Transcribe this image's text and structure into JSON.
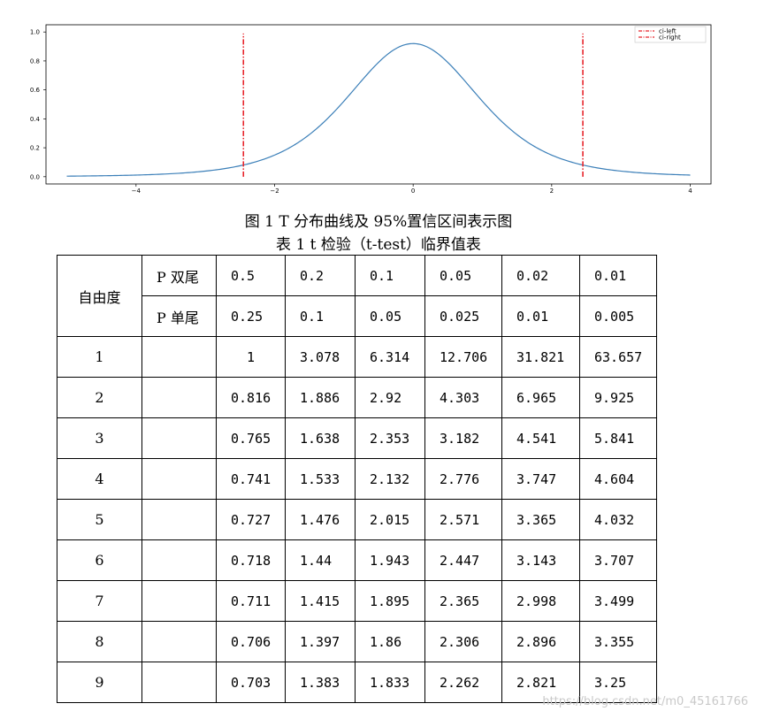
{
  "chart_data": {
    "type": "line",
    "title": "",
    "xlabel": "",
    "ylabel": "",
    "xlim": [
      -5.3,
      4.3
    ],
    "ylim": [
      -0.05,
      1.05
    ],
    "xticks": [
      -4,
      -2,
      0,
      2,
      4
    ],
    "yticks": [
      0.0,
      0.2,
      0.4,
      0.6,
      0.8,
      1.0
    ],
    "xtick_labels": [
      "−4",
      "−2",
      "0",
      "2",
      "4"
    ],
    "ytick_labels": [
      "0.0",
      "0.2",
      "0.4",
      "0.6",
      "0.8",
      "1.0"
    ],
    "curve": {
      "color": "#3b7fb8",
      "x_range": [
        -5,
        4
      ],
      "peak": 0.92,
      "scale": 0.98,
      "dof": 5
    },
    "vlines": [
      {
        "name": "ci-left",
        "x": -2.45,
        "ymax": 0.99,
        "color": "#e8242b"
      },
      {
        "name": "ci-right",
        "x": 2.45,
        "ymax": 0.99,
        "color": "#e8242b"
      }
    ],
    "grid": false,
    "legend_position": "top-right"
  },
  "figure": {
    "caption": "图 1 T 分布曲线及 95%置信区间表示图"
  },
  "table": {
    "caption": "表 1    t 检验（t-test）临界值表",
    "dof_header": "自由度",
    "two_tail_label": "P 双尾",
    "one_tail_label": "P 单尾",
    "two_tail": [
      "0.5",
      "0.2",
      "0.1",
      "0.05",
      "0.02",
      "0.01"
    ],
    "one_tail": [
      "0.25",
      "0.1",
      "0.05",
      "0.025",
      "0.01",
      "0.005"
    ],
    "rows": [
      {
        "df": "1",
        "values": [
          "1",
          "3.078",
          "6.314",
          "12.706",
          "31.821",
          "63.657"
        ]
      },
      {
        "df": "2",
        "values": [
          "0.816",
          "1.886",
          "2.92",
          "4.303",
          "6.965",
          "9.925"
        ]
      },
      {
        "df": "3",
        "values": [
          "0.765",
          "1.638",
          "2.353",
          "3.182",
          "4.541",
          "5.841"
        ]
      },
      {
        "df": "4",
        "values": [
          "0.741",
          "1.533",
          "2.132",
          "2.776",
          "3.747",
          "4.604"
        ]
      },
      {
        "df": "5",
        "values": [
          "0.727",
          "1.476",
          "2.015",
          "2.571",
          "3.365",
          "4.032"
        ]
      },
      {
        "df": "6",
        "values": [
          "0.718",
          "1.44",
          "1.943",
          "2.447",
          "3.143",
          "3.707"
        ]
      },
      {
        "df": "7",
        "values": [
          "0.711",
          "1.415",
          "1.895",
          "2.365",
          "2.998",
          "3.499"
        ]
      },
      {
        "df": "8",
        "values": [
          "0.706",
          "1.397",
          "1.86",
          "2.306",
          "2.896",
          "3.355"
        ]
      },
      {
        "df": "9",
        "values": [
          "0.703",
          "1.383",
          "1.833",
          "2.262",
          "2.821",
          "3.25"
        ]
      }
    ]
  },
  "watermark": "https://blog.csdn.net/m0_45161766"
}
